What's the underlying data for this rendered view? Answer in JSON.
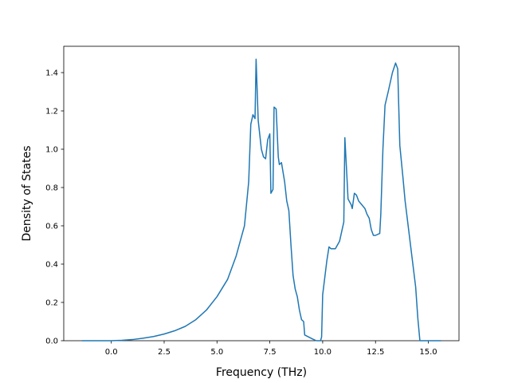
{
  "chart_data": {
    "type": "line",
    "xlabel": "Frequency (THz)",
    "ylabel": "Density of States",
    "xlim": [
      -2.25,
      16.45
    ],
    "ylim": [
      0,
      1.5375
    ],
    "xticks": [
      {
        "value": 0,
        "label": "0.0"
      },
      2.5,
      {
        "value": 5,
        "label": "5.0"
      },
      7.5,
      {
        "value": 10,
        "label": "10.0"
      },
      12.5,
      {
        "value": 15,
        "label": "15.0"
      }
    ],
    "yticks": [
      {
        "value": 0,
        "label": "0.0"
      },
      0.2,
      0.4,
      0.6,
      0.8,
      {
        "value": 1,
        "label": "1.0"
      },
      1.2,
      1.4
    ],
    "series": [
      {
        "color": "#1f77b4",
        "x": [
          -1.4,
          0,
          0.5,
          1,
          1.5,
          2,
          2.5,
          3,
          3.5,
          4,
          4.5,
          5,
          5.5,
          5.9,
          6.1,
          6.3,
          6.5,
          6.6,
          6.7,
          6.8,
          6.85,
          6.95,
          7.1,
          7.2,
          7.3,
          7.4,
          7.5,
          7.55,
          7.65,
          7.7,
          7.8,
          7.9,
          7.95,
          8.05,
          8.2,
          8.3,
          8.4,
          8.5,
          8.6,
          8.7,
          8.8,
          8.9,
          9.0,
          9.1,
          9.15,
          9.5,
          9.7,
          9.9,
          9.95,
          10.0,
          10.2,
          10.3,
          10.4,
          10.6,
          10.8,
          10.9,
          11.0,
          11.05,
          11.15,
          11.2,
          11.35,
          11.4,
          11.5,
          11.6,
          11.7,
          12.0,
          12.1,
          12.2,
          12.3,
          12.4,
          12.5,
          12.7,
          12.75,
          12.85,
          12.95,
          13.1,
          13.3,
          13.45,
          13.55,
          13.65,
          13.8,
          13.9,
          14.2,
          14.4,
          14.5,
          14.6,
          15.6
        ],
        "values": [
          0,
          0,
          0.002,
          0.006,
          0.013,
          0.022,
          0.035,
          0.052,
          0.075,
          0.11,
          0.16,
          0.23,
          0.32,
          0.44,
          0.52,
          0.6,
          0.83,
          1.13,
          1.18,
          1.16,
          1.47,
          1.15,
          1.0,
          0.96,
          0.95,
          1.05,
          1.08,
          0.77,
          0.79,
          1.22,
          1.21,
          0.96,
          0.92,
          0.93,
          0.83,
          0.73,
          0.68,
          0.5,
          0.34,
          0.27,
          0.23,
          0.16,
          0.11,
          0.1,
          0.03,
          0.01,
          0,
          0,
          0.02,
          0.24,
          0.42,
          0.49,
          0.48,
          0.48,
          0.52,
          0.57,
          0.62,
          1.06,
          0.85,
          0.74,
          0.71,
          0.69,
          0.77,
          0.76,
          0.73,
          0.69,
          0.66,
          0.64,
          0.58,
          0.55,
          0.55,
          0.56,
          0.66,
          1.0,
          1.23,
          1.3,
          1.4,
          1.45,
          1.42,
          1.02,
          0.85,
          0.73,
          0.46,
          0.28,
          0.12,
          0,
          0
        ]
      }
    ]
  }
}
